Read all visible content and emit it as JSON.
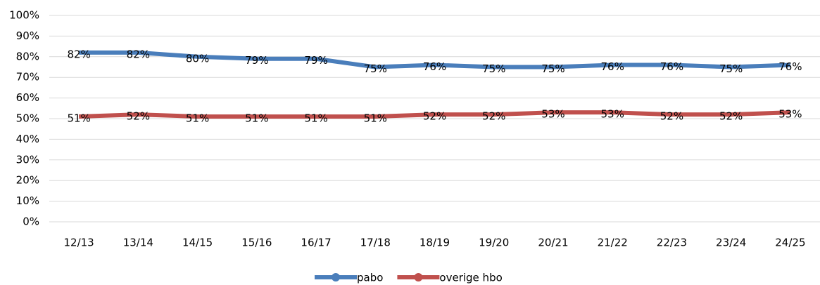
{
  "chart_data": {
    "type": "line",
    "categories": [
      "12/13",
      "13/14",
      "14/15",
      "15/16",
      "16/17",
      "17/18",
      "18/19",
      "19/20",
      "20/21",
      "21/22",
      "22/23",
      "23/24",
      "24/25"
    ],
    "series": [
      {
        "name": "pabo",
        "color": "#4a7ebb",
        "values": [
          82,
          82,
          80,
          79,
          79,
          75,
          76,
          75,
          75,
          76,
          76,
          75,
          76
        ],
        "value_labels": [
          "82%",
          "82%",
          "80%",
          "79%",
          "79%",
          "75%",
          "76%",
          "75%",
          "75%",
          "76%",
          "76%",
          "75%",
          "76%"
        ]
      },
      {
        "name": "overige hbo",
        "color": "#c0504d",
        "values": [
          51,
          52,
          51,
          51,
          51,
          51,
          52,
          52,
          53,
          53,
          52,
          52,
          53
        ],
        "value_labels": [
          "51%",
          "52%",
          "51%",
          "51%",
          "51%",
          "51%",
          "52%",
          "52%",
          "53%",
          "53%",
          "52%",
          "52%",
          "53%"
        ]
      }
    ],
    "ylim": [
      0,
      100
    ],
    "yticks": [
      {
        "value": 0,
        "label": "0%"
      },
      {
        "value": 10,
        "label": "10%"
      },
      {
        "value": 20,
        "label": "20%"
      },
      {
        "value": 30,
        "label": "30%"
      },
      {
        "value": 40,
        "label": "40%"
      },
      {
        "value": 50,
        "label": "50%"
      },
      {
        "value": 60,
        "label": "60%"
      },
      {
        "value": 70,
        "label": "70%"
      },
      {
        "value": 80,
        "label": "80%"
      },
      {
        "value": 90,
        "label": "90%"
      },
      {
        "value": 100,
        "label": "100%"
      }
    ],
    "grid": true,
    "legend": "bottom"
  }
}
